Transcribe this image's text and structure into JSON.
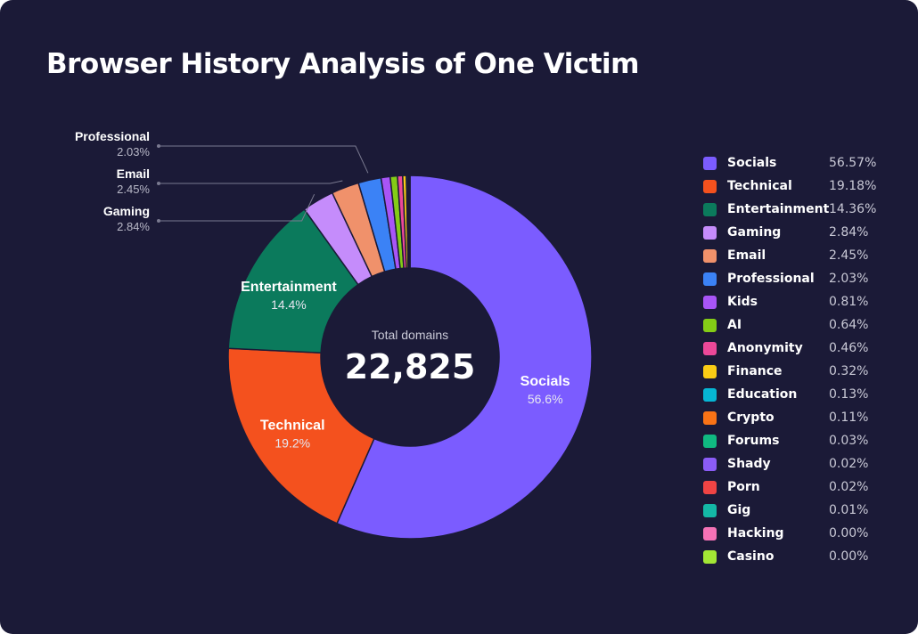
{
  "title": "Browser History Analysis of One Victim",
  "center": {
    "caption": "Total domains",
    "total": "22,825"
  },
  "chart_data": {
    "type": "pie",
    "title": "Browser History Analysis of One Victim",
    "total_label": "Total domains",
    "total": 22825,
    "categories": [
      "Socials",
      "Technical",
      "Entertainment",
      "Gaming",
      "Email",
      "Professional",
      "Kids",
      "AI",
      "Anonymity",
      "Finance",
      "Education",
      "Crypto",
      "Forums",
      "Shady",
      "Porn",
      "Gig",
      "Hacking",
      "Casino"
    ],
    "values": [
      56.57,
      19.18,
      14.36,
      2.84,
      2.45,
      2.03,
      0.81,
      0.64,
      0.46,
      0.32,
      0.13,
      0.11,
      0.03,
      0.02,
      0.02,
      0.01,
      0.0,
      0.0
    ],
    "legend_values": [
      "56.57%",
      "19.18%",
      "14.36%",
      "2.84%",
      "2.45%",
      "2.03%",
      "0.81%",
      "0.64%",
      "0.46%",
      "0.32%",
      "0.13%",
      "0.11%",
      "0.03%",
      "0.02%",
      "0.02%",
      "0.01%",
      "0.00%",
      "0.00%"
    ],
    "colors": [
      "#7b5cff",
      "#f4511e",
      "#0b7a5c",
      "#c58cfb",
      "#f0916b",
      "#3b82f6",
      "#a855f7",
      "#84cc16",
      "#ec4899",
      "#facc15",
      "#06b6d4",
      "#f97316",
      "#10b981",
      "#8b5cf6",
      "#ef4444",
      "#14b8a6",
      "#f472b6",
      "#a3e635"
    ],
    "slice_labels": [
      {
        "name": "Socials",
        "value": "56.6%"
      },
      {
        "name": "Technical",
        "value": "19.2%"
      },
      {
        "name": "Entertainment",
        "value": "14.4%"
      }
    ],
    "callouts": [
      {
        "name": "Professional",
        "value": "2.03%"
      },
      {
        "name": "Email",
        "value": "2.45%"
      },
      {
        "name": "Gaming",
        "value": "2.84%"
      }
    ],
    "legend_position": "right"
  }
}
